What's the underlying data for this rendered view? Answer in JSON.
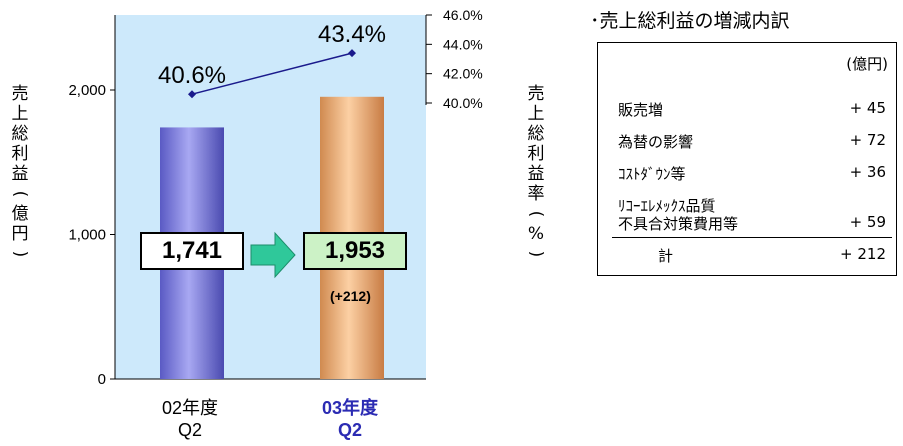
{
  "chart_data": {
    "type": "bar+line",
    "categories": [
      "02年度\nQ2",
      "03年度\nQ2"
    ],
    "highlight_category": 1,
    "bars": {
      "name": "売上総利益",
      "values": [
        1741,
        1953
      ],
      "colors": [
        "#7b7be0",
        "#f0b078"
      ]
    },
    "line": {
      "name": "売上総利益率",
      "values": [
        40.6,
        43.4
      ],
      "color": "#1a1a8c"
    },
    "value_labels": [
      "1,741",
      "1,953"
    ],
    "line_labels": [
      "40.6%",
      "43.4%"
    ],
    "delta_label": "(+212)",
    "y_left": {
      "label_chars": [
        "売",
        "上",
        "総",
        "利",
        "益",
        "(",
        "億",
        "円",
        ")"
      ],
      "ticks": [
        0,
        1000,
        2000
      ],
      "tick_labels": [
        "0",
        "1,000",
        "2,000"
      ],
      "range": [
        0,
        2500
      ]
    },
    "y_right": {
      "label_chars": [
        "売",
        "上",
        "総",
        "利",
        "益",
        "率",
        "(",
        "%",
        ")"
      ],
      "ticks": [
        40,
        42,
        44,
        46
      ],
      "tick_labels": [
        "40.0%",
        "42.0%",
        "44.0%",
        "46.0%"
      ],
      "range": [
        40,
        46
      ]
    },
    "plot_background": "#cde9fb"
  },
  "breakdown": {
    "title": "･売上総利益の増減内訳",
    "unit": "(億円)",
    "rows": [
      {
        "label": "販売増",
        "value": "+ 45"
      },
      {
        "label": "為替の影響",
        "value": "+ 72"
      },
      {
        "label": "ｺｽﾄﾀﾞｳﾝ等",
        "value": "+ 36"
      },
      {
        "label_line1": "ﾘｺｰｴﾚﾒｯｸｽ品質",
        "label_line2": "不具合対策費用等",
        "value": "+ 59"
      }
    ],
    "total": {
      "label": "計",
      "value": "+ 212"
    }
  }
}
